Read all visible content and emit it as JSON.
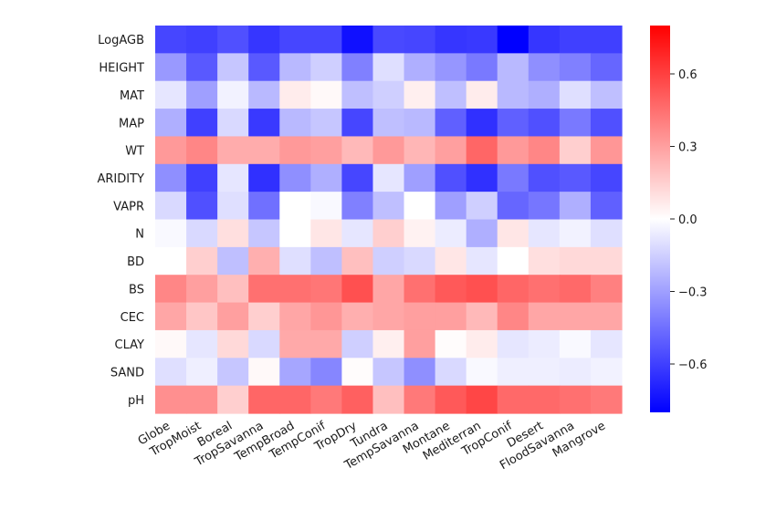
{
  "chart_data": {
    "type": "heatmap",
    "rows": [
      "LogAGB",
      "HEIGHT",
      "MAT",
      "MAP",
      "WT",
      "ARIDITY",
      "VAPR",
      "N",
      "BD",
      "BS",
      "CEC",
      "CLAY",
      "SAND",
      "pH"
    ],
    "columns": [
      "Globe",
      "TropMoist",
      "Boreal",
      "TropSavanna",
      "TempBroad",
      "TempConif",
      "TropDry",
      "Tundra",
      "TempSavanna",
      "Montane",
      "Mediterran",
      "TropConif",
      "Desert",
      "FloodSavanna",
      "Mangrove"
    ],
    "values": [
      [
        -0.58,
        -0.6,
        -0.55,
        -0.63,
        -0.58,
        -0.58,
        -0.75,
        -0.57,
        -0.58,
        -0.63,
        -0.62,
        -0.8,
        -0.63,
        -0.6,
        -0.6
      ],
      [
        -0.32,
        -0.52,
        -0.18,
        -0.52,
        -0.22,
        -0.15,
        -0.4,
        -0.1,
        -0.25,
        -0.33,
        -0.42,
        -0.22,
        -0.35,
        -0.4,
        -0.48
      ],
      [
        -0.08,
        -0.3,
        -0.04,
        -0.22,
        0.06,
        0.02,
        -0.2,
        -0.15,
        0.05,
        -0.2,
        0.06,
        -0.22,
        -0.25,
        -0.1,
        -0.2
      ],
      [
        -0.25,
        -0.6,
        -0.12,
        -0.62,
        -0.22,
        -0.18,
        -0.58,
        -0.2,
        -0.22,
        -0.5,
        -0.65,
        -0.5,
        -0.55,
        -0.42,
        -0.55
      ],
      [
        0.32,
        0.38,
        0.26,
        0.26,
        0.32,
        0.3,
        0.22,
        0.32,
        0.23,
        0.3,
        0.48,
        0.32,
        0.38,
        0.15,
        0.33
      ],
      [
        -0.35,
        -0.6,
        -0.08,
        -0.65,
        -0.35,
        -0.25,
        -0.58,
        -0.08,
        -0.3,
        -0.55,
        -0.65,
        -0.42,
        -0.55,
        -0.52,
        -0.58
      ],
      [
        -0.12,
        -0.55,
        -0.1,
        -0.45,
        0.0,
        -0.02,
        -0.4,
        -0.2,
        0.0,
        -0.3,
        -0.15,
        -0.48,
        -0.43,
        -0.25,
        -0.5
      ],
      [
        -0.02,
        -0.12,
        0.1,
        -0.18,
        0.0,
        0.08,
        -0.08,
        0.15,
        0.04,
        -0.06,
        -0.25,
        0.08,
        -0.08,
        -0.04,
        -0.1
      ],
      [
        0.0,
        0.15,
        -0.2,
        0.25,
        -0.1,
        -0.2,
        0.2,
        -0.15,
        -0.12,
        0.08,
        -0.08,
        0.0,
        0.1,
        0.12,
        0.12
      ],
      [
        0.38,
        0.3,
        0.2,
        0.45,
        0.45,
        0.43,
        0.55,
        0.28,
        0.45,
        0.52,
        0.55,
        0.48,
        0.45,
        0.47,
        0.4
      ],
      [
        0.28,
        0.18,
        0.3,
        0.15,
        0.28,
        0.33,
        0.25,
        0.28,
        0.3,
        0.3,
        0.22,
        0.38,
        0.28,
        0.28,
        0.28
      ],
      [
        0.02,
        -0.08,
        0.12,
        -0.12,
        0.27,
        0.27,
        -0.15,
        0.05,
        0.3,
        0.01,
        0.06,
        -0.08,
        -0.06,
        -0.02,
        -0.08
      ],
      [
        -0.1,
        -0.05,
        -0.18,
        0.02,
        -0.28,
        -0.38,
        0.01,
        -0.18,
        -0.35,
        -0.12,
        -0.02,
        -0.05,
        -0.05,
        -0.06,
        -0.04
      ],
      [
        0.35,
        0.35,
        0.15,
        0.48,
        0.48,
        0.42,
        0.5,
        0.2,
        0.42,
        0.52,
        0.58,
        0.47,
        0.47,
        0.45,
        0.42
      ]
    ],
    "vmin": -0.8,
    "vmax": 0.8,
    "colormap": "bwr",
    "colorbar_ticks": [
      0.6,
      0.3,
      0.0,
      -0.3,
      -0.6
    ],
    "colorbar_tick_labels": [
      "0.6",
      "0.3",
      "0.0",
      "−0.3",
      "−0.6"
    ]
  },
  "colors": {
    "negative_end": "#0000ff",
    "zero": "#ffffff",
    "positive_end": "#ff0000"
  }
}
